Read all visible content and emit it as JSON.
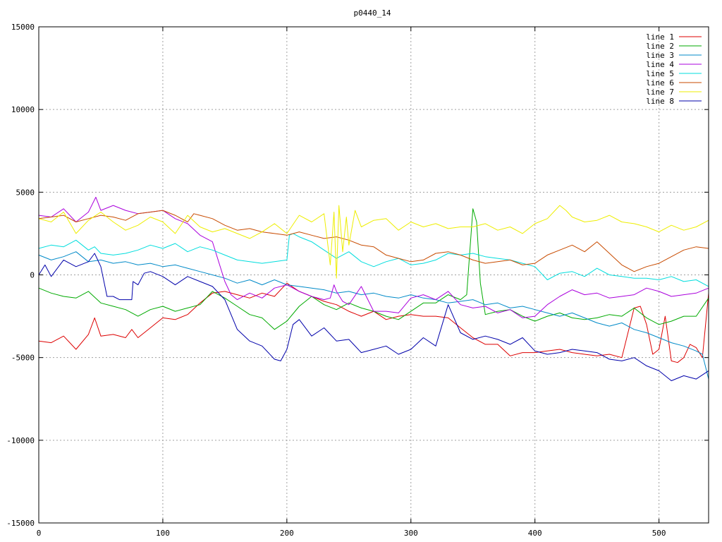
{
  "chart_data": {
    "type": "line",
    "title": "p0440_14",
    "xlabel": "",
    "ylabel": "",
    "xlim": [
      0,
      540
    ],
    "ylim": [
      -15000,
      15000
    ],
    "xticks": [
      0,
      100,
      200,
      300,
      400,
      500
    ],
    "yticks": [
      -15000,
      -10000,
      -5000,
      0,
      5000,
      10000,
      15000
    ],
    "grid": true,
    "legend_position": "top-right",
    "series": [
      {
        "name": "line 1",
        "color": "#dd0000",
        "x": [
          0,
          10,
          20,
          30,
          40,
          45,
          50,
          60,
          70,
          75,
          80,
          90,
          100,
          110,
          120,
          130,
          140,
          150,
          160,
          170,
          180,
          190,
          200,
          210,
          220,
          230,
          240,
          250,
          260,
          270,
          280,
          290,
          300,
          310,
          320,
          330,
          340,
          350,
          360,
          370,
          380,
          390,
          400,
          410,
          420,
          430,
          440,
          450,
          460,
          470,
          480,
          485,
          490,
          495,
          500,
          505,
          510,
          515,
          520,
          525,
          530,
          535,
          540
        ],
        "y": [
          -4000,
          -4100,
          -3700,
          -4500,
          -3600,
          -2600,
          -3700,
          -3600,
          -3800,
          -3300,
          -3800,
          -3200,
          -2600,
          -2700,
          -2400,
          -1700,
          -1100,
          -1000,
          -1200,
          -1400,
          -1100,
          -1300,
          -500,
          -1000,
          -1300,
          -1600,
          -1800,
          -2200,
          -2500,
          -2200,
          -2700,
          -2500,
          -2400,
          -2500,
          -2500,
          -2600,
          -3200,
          -3800,
          -4200,
          -4200,
          -4900,
          -4700,
          -4700,
          -4600,
          -4500,
          -4700,
          -4800,
          -4900,
          -4800,
          -5000,
          -2000,
          -1900,
          -3000,
          -4800,
          -4500,
          -2500,
          -5200,
          -5300,
          -5000,
          -4200,
          -4400,
          -5000,
          -1100
        ]
      },
      {
        "name": "line 2",
        "color": "#00aa00",
        "x": [
          0,
          10,
          20,
          30,
          40,
          50,
          60,
          70,
          80,
          90,
          100,
          110,
          120,
          130,
          140,
          150,
          160,
          170,
          180,
          190,
          200,
          210,
          220,
          230,
          240,
          250,
          260,
          270,
          280,
          290,
          300,
          310,
          320,
          330,
          340,
          345,
          350,
          353,
          356,
          360,
          370,
          380,
          390,
          400,
          410,
          420,
          430,
          440,
          450,
          460,
          470,
          480,
          490,
          500,
          510,
          520,
          530,
          540
        ],
        "y": [
          -800,
          -1100,
          -1300,
          -1400,
          -1000,
          -1700,
          -1900,
          -2100,
          -2500,
          -2100,
          -1900,
          -2200,
          -2000,
          -1800,
          -1000,
          -1400,
          -1900,
          -2400,
          -2600,
          -3300,
          -2800,
          -1900,
          -1300,
          -1800,
          -2100,
          -1700,
          -2000,
          -2200,
          -2500,
          -2700,
          -2200,
          -1700,
          -1700,
          -1200,
          -1500,
          -1200,
          4000,
          3200,
          -500,
          -2400,
          -2200,
          -2100,
          -2500,
          -2800,
          -2500,
          -2300,
          -2600,
          -2700,
          -2600,
          -2400,
          -2500,
          -2000,
          -2600,
          -3000,
          -2800,
          -2500,
          -2500,
          -1400
        ]
      },
      {
        "name": "line 3",
        "color": "#008ac8",
        "x": [
          0,
          10,
          20,
          30,
          40,
          50,
          60,
          70,
          80,
          90,
          100,
          110,
          120,
          130,
          140,
          150,
          160,
          170,
          180,
          190,
          200,
          210,
          220,
          230,
          240,
          250,
          260,
          270,
          280,
          290,
          300,
          310,
          320,
          330,
          340,
          350,
          360,
          370,
          380,
          390,
          400,
          410,
          420,
          430,
          440,
          450,
          460,
          470,
          480,
          490,
          500,
          510,
          520,
          530,
          535,
          540
        ],
        "y": [
          1200,
          900,
          1100,
          1400,
          800,
          900,
          700,
          800,
          600,
          700,
          500,
          600,
          400,
          200,
          0,
          -200,
          -500,
          -300,
          -600,
          -300,
          -600,
          -700,
          -800,
          -900,
          -1100,
          -1000,
          -1200,
          -1100,
          -1300,
          -1400,
          -1200,
          -1400,
          -1500,
          -1700,
          -1600,
          -1500,
          -1800,
          -1700,
          -2000,
          -1900,
          -2100,
          -2300,
          -2500,
          -2300,
          -2600,
          -2900,
          -3100,
          -2900,
          -3300,
          -3500,
          -3800,
          -4100,
          -4300,
          -4600,
          -4800,
          -6300
        ]
      },
      {
        "name": "line 4",
        "color": "#aa00dd",
        "x": [
          0,
          10,
          20,
          30,
          40,
          46,
          50,
          60,
          70,
          80,
          90,
          100,
          110,
          120,
          130,
          140,
          145,
          150,
          155,
          160,
          170,
          180,
          190,
          200,
          210,
          220,
          230,
          235,
          238,
          240,
          245,
          250,
          260,
          270,
          280,
          290,
          300,
          310,
          320,
          330,
          340,
          350,
          360,
          370,
          380,
          390,
          400,
          410,
          420,
          430,
          440,
          450,
          460,
          470,
          480,
          490,
          500,
          510,
          520,
          530,
          540
        ],
        "y": [
          3600,
          3500,
          4000,
          3200,
          3800,
          4700,
          3900,
          4200,
          3900,
          3700,
          3800,
          3900,
          3400,
          3100,
          2400,
          2000,
          800,
          -400,
          -1200,
          -1500,
          -1100,
          -1400,
          -800,
          -600,
          -1000,
          -1300,
          -1500,
          -1400,
          -600,
          -1000,
          -1600,
          -1800,
          -700,
          -2200,
          -2200,
          -2300,
          -1400,
          -1200,
          -1500,
          -1000,
          -1800,
          -2000,
          -1900,
          -2300,
          -2100,
          -2600,
          -2500,
          -1800,
          -1300,
          -900,
          -1200,
          -1100,
          -1400,
          -1300,
          -1200,
          -800,
          -1000,
          -1300,
          -1200,
          -1100,
          -800
        ]
      },
      {
        "name": "line 5",
        "color": "#00dddd",
        "x": [
          0,
          10,
          20,
          30,
          40,
          45,
          50,
          60,
          70,
          80,
          90,
          100,
          110,
          120,
          130,
          140,
          150,
          160,
          170,
          180,
          190,
          200,
          202,
          205,
          210,
          220,
          230,
          240,
          250,
          260,
          270,
          280,
          290,
          300,
          310,
          320,
          330,
          340,
          350,
          360,
          370,
          380,
          390,
          400,
          410,
          420,
          430,
          440,
          450,
          460,
          470,
          480,
          490,
          500,
          510,
          520,
          530,
          540
        ],
        "y": [
          1600,
          1800,
          1700,
          2100,
          1500,
          1700,
          1300,
          1200,
          1300,
          1500,
          1800,
          1600,
          1900,
          1400,
          1700,
          1500,
          1200,
          900,
          800,
          700,
          800,
          900,
          2400,
          2500,
          2300,
          2000,
          1500,
          1000,
          1400,
          800,
          500,
          800,
          1000,
          600,
          700,
          900,
          1300,
          1200,
          1300,
          1100,
          1000,
          900,
          700,
          500,
          -300,
          100,
          200,
          -100,
          400,
          0,
          -100,
          -200,
          -200,
          -300,
          -100,
          -400,
          -300,
          -700
        ]
      },
      {
        "name": "line 6",
        "color": "#c84b00",
        "x": [
          0,
          10,
          20,
          30,
          40,
          50,
          60,
          70,
          80,
          90,
          100,
          110,
          120,
          125,
          130,
          140,
          150,
          160,
          170,
          180,
          190,
          200,
          210,
          220,
          230,
          240,
          250,
          260,
          270,
          280,
          290,
          300,
          310,
          320,
          330,
          340,
          350,
          360,
          370,
          380,
          390,
          400,
          410,
          420,
          430,
          440,
          450,
          460,
          470,
          480,
          490,
          500,
          510,
          520,
          530,
          540
        ],
        "y": [
          3400,
          3500,
          3600,
          3200,
          3400,
          3600,
          3500,
          3300,
          3700,
          3800,
          3900,
          3600,
          3200,
          3700,
          3600,
          3400,
          3000,
          2700,
          2800,
          2600,
          2500,
          2400,
          2600,
          2400,
          2200,
          2300,
          2100,
          1800,
          1700,
          1200,
          1000,
          800,
          900,
          1300,
          1400,
          1200,
          900,
          700,
          800,
          900,
          600,
          700,
          1200,
          1500,
          1800,
          1400,
          2000,
          1300,
          600,
          200,
          500,
          700,
          1100,
          1500,
          1700,
          1600
        ]
      },
      {
        "name": "line 7",
        "color": "#eeee00",
        "x": [
          0,
          10,
          20,
          30,
          40,
          50,
          60,
          70,
          80,
          90,
          100,
          110,
          120,
          130,
          140,
          150,
          160,
          170,
          180,
          190,
          200,
          210,
          220,
          230,
          235,
          238,
          240,
          242,
          245,
          248,
          250,
          255,
          260,
          270,
          280,
          290,
          300,
          310,
          320,
          330,
          340,
          350,
          360,
          370,
          380,
          390,
          400,
          410,
          420,
          425,
          430,
          440,
          450,
          460,
          470,
          480,
          490,
          500,
          510,
          520,
          530,
          540
        ],
        "y": [
          3400,
          3200,
          3800,
          2500,
          3300,
          3800,
          3200,
          2700,
          3000,
          3500,
          3200,
          2500,
          3600,
          2900,
          2600,
          2800,
          2500,
          2200,
          2600,
          3100,
          2500,
          3600,
          3200,
          3700,
          600,
          3800,
          -200,
          4200,
          1400,
          3500,
          1800,
          3900,
          2900,
          3300,
          3400,
          2700,
          3200,
          2900,
          3100,
          2800,
          2900,
          2900,
          3100,
          2700,
          2900,
          2500,
          3100,
          3400,
          4200,
          3900,
          3500,
          3200,
          3300,
          3600,
          3200,
          3100,
          2900,
          2600,
          3000,
          2700,
          2900,
          3300
        ]
      },
      {
        "name": "line 8",
        "color": "#0000aa",
        "x": [
          0,
          5,
          10,
          20,
          30,
          40,
          45,
          50,
          55,
          60,
          65,
          70,
          75,
          76,
          80,
          85,
          90,
          100,
          110,
          120,
          130,
          140,
          150,
          160,
          170,
          180,
          190,
          195,
          200,
          205,
          210,
          220,
          230,
          240,
          250,
          260,
          270,
          280,
          290,
          300,
          310,
          320,
          330,
          340,
          350,
          360,
          370,
          380,
          390,
          400,
          410,
          420,
          430,
          440,
          450,
          460,
          470,
          480,
          490,
          500,
          510,
          520,
          530,
          540
        ],
        "y": [
          0,
          600,
          -100,
          900,
          500,
          800,
          1300,
          500,
          -1300,
          -1300,
          -1500,
          -1500,
          -1500,
          -400,
          -600,
          100,
          200,
          -100,
          -600,
          -100,
          -400,
          -700,
          -1500,
          -3300,
          -4000,
          -4300,
          -5100,
          -5200,
          -4500,
          -3000,
          -2700,
          -3700,
          -3200,
          -4000,
          -3900,
          -4700,
          -4500,
          -4300,
          -4800,
          -4500,
          -3800,
          -4300,
          -1800,
          -3500,
          -3900,
          -3700,
          -3900,
          -4200,
          -3800,
          -4600,
          -4800,
          -4700,
          -4500,
          -4600,
          -4700,
          -5100,
          -5200,
          -5000,
          -5500,
          -5800,
          -6400,
          -6100,
          -6300,
          -5800
        ]
      }
    ]
  }
}
